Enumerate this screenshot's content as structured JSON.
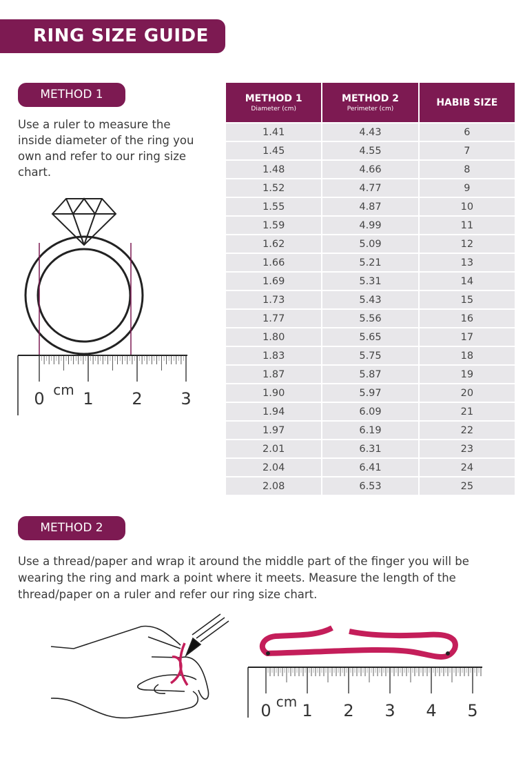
{
  "title": "RING SIZE GUIDE",
  "method1": {
    "label": "METHOD 1",
    "text": "Use a ruler to measure the inside diameter of the ring you own and refer to our ring size chart.",
    "ruler": {
      "unit": "cm",
      "labels": [
        "0",
        "1",
        "2",
        "3"
      ]
    }
  },
  "method2": {
    "label": "METHOD 2",
    "text": "Use a thread/paper and wrap it around the middle part of the finger you will be wearing the ring and mark a point where it meets. Measure the length of the thread/paper on a ruler and refer our ring size chart.",
    "ruler": {
      "unit": "cm",
      "labels": [
        "0",
        "1",
        "2",
        "3",
        "4",
        "5"
      ]
    }
  },
  "table": {
    "headers": [
      {
        "title": "METHOD 1",
        "sub": "Diameter (cm)"
      },
      {
        "title": "METHOD 2",
        "sub": "Perimeter (cm)"
      },
      {
        "title": "HABIB SIZE",
        "sub": ""
      }
    ],
    "rows": [
      [
        "1.41",
        "4.43",
        "6"
      ],
      [
        "1.45",
        "4.55",
        "7"
      ],
      [
        "1.48",
        "4.66",
        "8"
      ],
      [
        "1.52",
        "4.77",
        "9"
      ],
      [
        "1.55",
        "4.87",
        "10"
      ],
      [
        "1.59",
        "4.99",
        "11"
      ],
      [
        "1.62",
        "5.09",
        "12"
      ],
      [
        "1.66",
        "5.21",
        "13"
      ],
      [
        "1.69",
        "5.31",
        "14"
      ],
      [
        "1.73",
        "5.43",
        "15"
      ],
      [
        "1.77",
        "5.56",
        "16"
      ],
      [
        "1.80",
        "5.65",
        "17"
      ],
      [
        "1.83",
        "5.75",
        "18"
      ],
      [
        "1.87",
        "5.87",
        "19"
      ],
      [
        "1.90",
        "5.97",
        "20"
      ],
      [
        "1.94",
        "6.09",
        "21"
      ],
      [
        "1.97",
        "6.19",
        "22"
      ],
      [
        "2.01",
        "6.31",
        "23"
      ],
      [
        "2.04",
        "6.41",
        "24"
      ],
      [
        "2.08",
        "6.53",
        "25"
      ]
    ]
  },
  "colors": {
    "brand": "#7d1a52",
    "thread": "#c41e5a",
    "row": "#e8e7ea"
  }
}
